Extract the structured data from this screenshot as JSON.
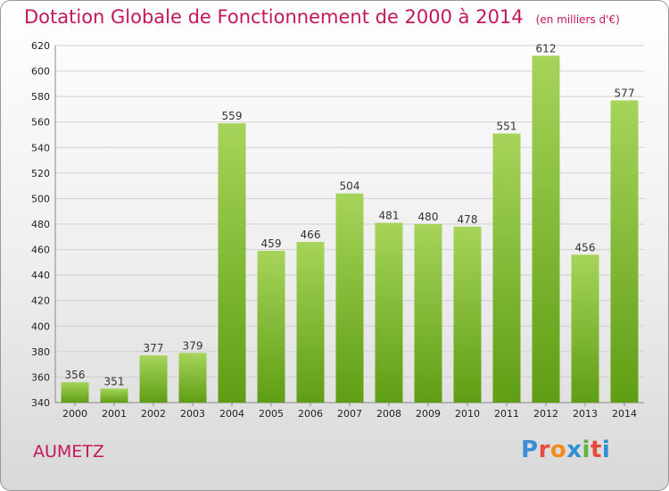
{
  "title": "Dotation Globale de Fonctionnement de 2000 à 2014",
  "unit_note": "(en milliers d'€)",
  "commune": "AUMETZ",
  "logo": {
    "text": "Proxiti",
    "colors": [
      "#3b8fd6",
      "#e84a3c",
      "#f28c1b",
      "#2e8fd6",
      "#5bb53b",
      "#e84a3c",
      "#2e8fd6"
    ]
  },
  "colors": {
    "title": "#c2185b",
    "bar_light": "#a6d45a",
    "bar_dark": "#5f9e14",
    "grid": "#d0d0d0"
  },
  "chart_data": {
    "type": "bar",
    "title": "Dotation Globale de Fonctionnement de 2000 à 2014",
    "categories": [
      "2000",
      "2001",
      "2002",
      "2003",
      "2004",
      "2005",
      "2006",
      "2007",
      "2008",
      "2009",
      "2010",
      "2011",
      "2012",
      "2013",
      "2014"
    ],
    "values": [
      356,
      351,
      377,
      379,
      559,
      459,
      466,
      504,
      481,
      480,
      478,
      551,
      612,
      456,
      577
    ],
    "ylim": [
      340,
      620
    ],
    "yticks": [
      340,
      360,
      380,
      400,
      420,
      440,
      460,
      480,
      500,
      520,
      540,
      560,
      580,
      600,
      620
    ],
    "grid": true,
    "xlabel": "",
    "ylabel": ""
  }
}
